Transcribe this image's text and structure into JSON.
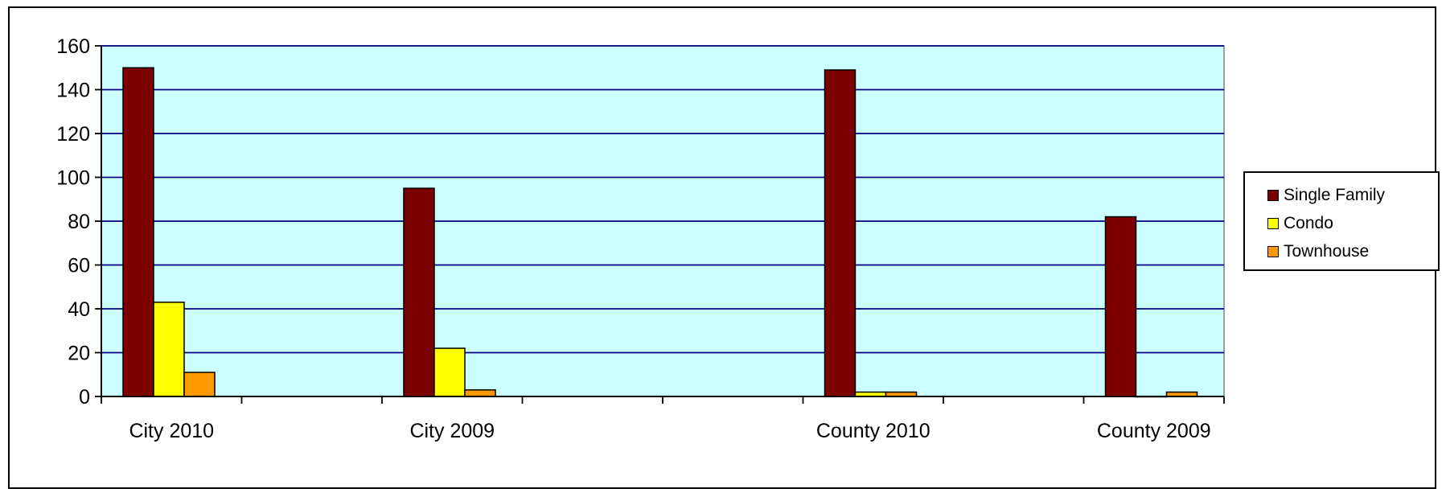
{
  "chart_data": {
    "type": "bar",
    "title": "",
    "xlabel": "",
    "ylabel": "",
    "categories": [
      "City 2010",
      "",
      "City 2009",
      "",
      "",
      "County 2010",
      "",
      "County 2009"
    ],
    "series": [
      {
        "name": "Single Family",
        "color": "#7b0000",
        "values": [
          150,
          null,
          95,
          null,
          null,
          149,
          null,
          82
        ]
      },
      {
        "name": "Condo",
        "color": "#ffff00",
        "values": [
          43,
          null,
          22,
          null,
          null,
          2,
          null,
          0
        ]
      },
      {
        "name": "Townhouse",
        "color": "#ff9900",
        "values": [
          11,
          null,
          3,
          null,
          null,
          2,
          null,
          2
        ]
      }
    ],
    "ylim": [
      0,
      160
    ],
    "yticks": [
      0,
      20,
      40,
      60,
      80,
      100,
      120,
      140,
      160
    ],
    "grid": true,
    "legend_position": "right",
    "plot_background": "#ccffff",
    "gridline_color": "#000080"
  }
}
